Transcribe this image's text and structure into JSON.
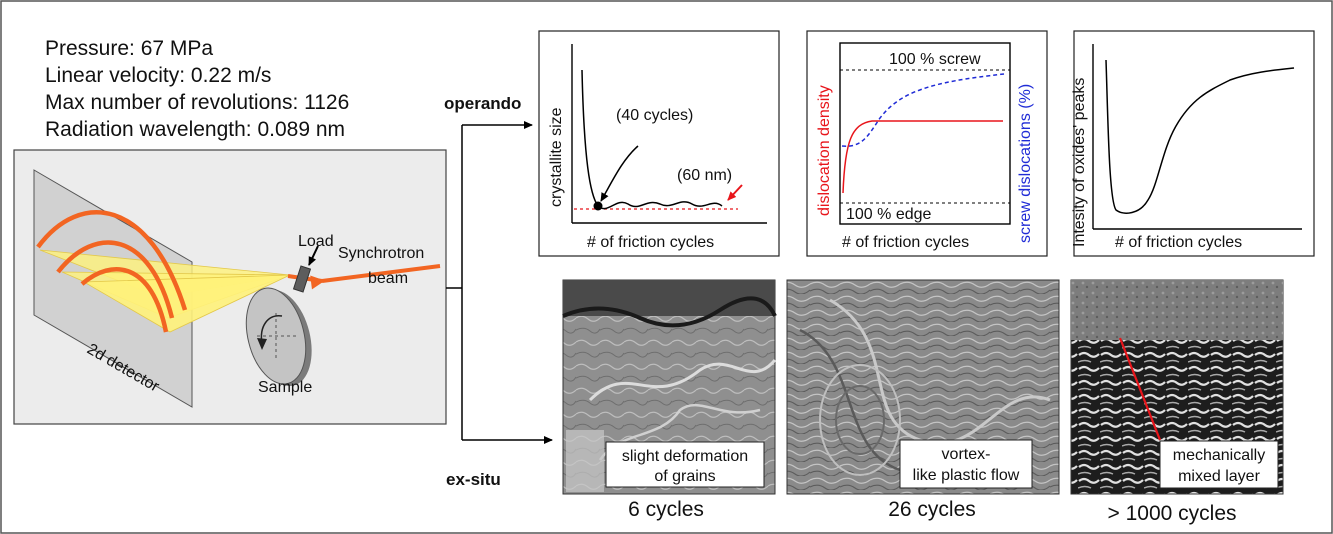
{
  "parameters": {
    "pressure": "Pressure: 67 MPa",
    "velocity": "Linear velocity: 0.22 m/s",
    "revolutions": "Max number of revolutions: 1126",
    "wavelength": "Radiation wavelength: 0.089 nm"
  },
  "setup": {
    "load_label": "Load",
    "beam_label_1": "Synchrotron",
    "beam_label_2": "beam",
    "detector_label": "2d detector",
    "sample_label": "Sample"
  },
  "routes": {
    "operando": "operando",
    "ex_situ": "ex-situ"
  },
  "plot1": {
    "ylabel": "crystallite size",
    "xlabel": "# of friction cycles",
    "annotation_cycles": "(40 cycles)",
    "annotation_size": "(60 nm)"
  },
  "plot2": {
    "ylabel_left": "dislocation density",
    "ylabel_right": "screw dislocations (%)",
    "xlabel": "# of friction cycles",
    "top_level": "100 % screw",
    "bottom_level": "100 % edge",
    "colors": {
      "density": "#e8151b",
      "screw": "#1f2bd6"
    }
  },
  "plot3": {
    "ylabel": "Intesity of oxides' peaks",
    "xlabel": "# of friction cycles"
  },
  "micrographs": [
    {
      "caption": "slight deformation of grains",
      "caption_line1": "slight deformation",
      "caption_line2": "of grains",
      "cycles": "6 cycles"
    },
    {
      "caption": "vortex-like plastic flow",
      "caption_line1": "vortex-",
      "caption_line2": "like plastic flow",
      "cycles": "26 cycles"
    },
    {
      "caption": "mechanically mixed layer",
      "caption_line1": "mechanically",
      "caption_line2": "mixed layer",
      "cycles": "> 1000 cycles"
    }
  ],
  "colors": {
    "arc": "#f26522",
    "fan": "#fff27a",
    "beam": "#f26522",
    "red": "#e8151b"
  }
}
